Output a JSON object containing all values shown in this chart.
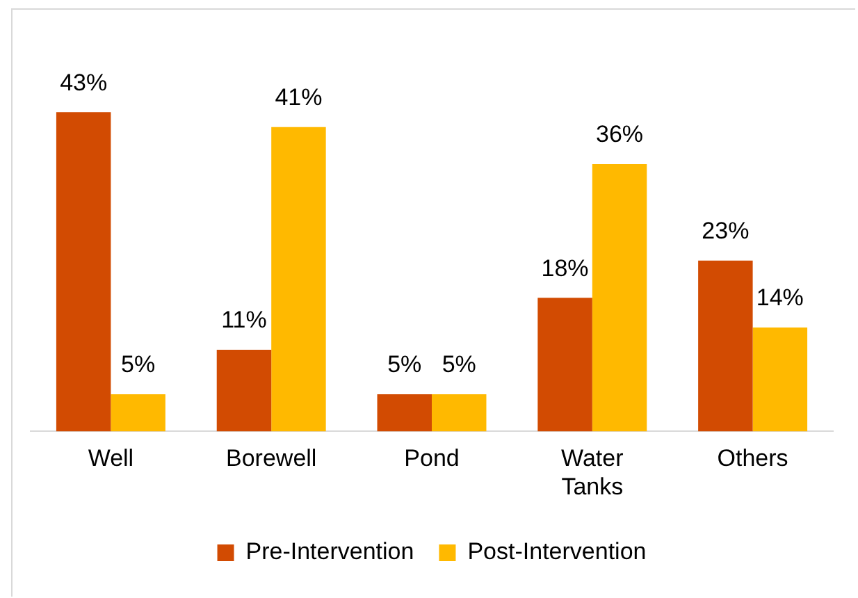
{
  "chart_data": {
    "type": "bar",
    "categories": [
      "Well",
      "Borewell",
      "Pond",
      "Water Tanks",
      "Others"
    ],
    "series": [
      {
        "name": "Pre-Intervention",
        "color": "#d24b02",
        "values": [
          43,
          11,
          5,
          18,
          23
        ],
        "value_labels": [
          "43%",
          "11%",
          "5%",
          "18%",
          "23%"
        ]
      },
      {
        "name": "Post-Intervention",
        "color": "#ffb900",
        "values": [
          5,
          41,
          5,
          36,
          14
        ],
        "value_labels": [
          "5%",
          "41%",
          "5%",
          "36%",
          "14%"
        ]
      }
    ],
    "tick_labels": "x",
    "legend": "bottom"
  }
}
